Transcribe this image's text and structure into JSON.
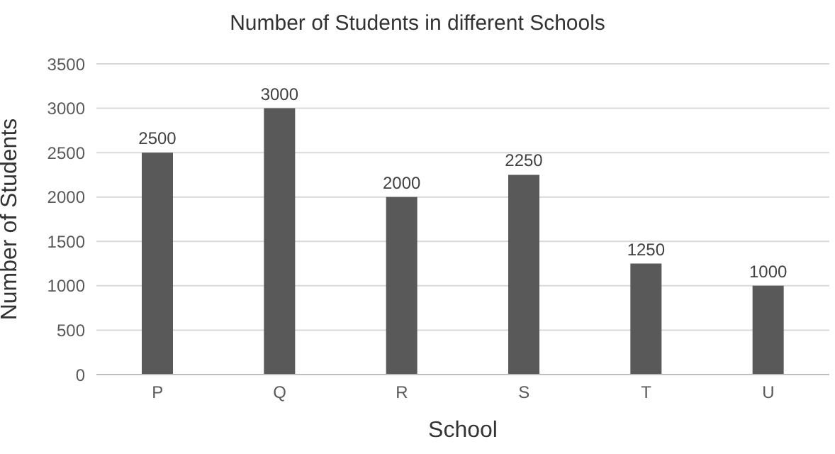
{
  "chart_data": {
    "type": "bar",
    "title": "Number of Students in different Schools",
    "xlabel": "School",
    "ylabel": "Number of Students",
    "categories": [
      "P",
      "Q",
      "R",
      "S",
      "T",
      "U"
    ],
    "values": [
      2500,
      3000,
      2000,
      2250,
      1250,
      1000
    ],
    "color": "#595959",
    "ylim": [
      0,
      3500
    ],
    "yticks": [
      0,
      500,
      1000,
      1500,
      2000,
      2500,
      3000,
      3500
    ],
    "grid": "y",
    "data_labels": true
  }
}
